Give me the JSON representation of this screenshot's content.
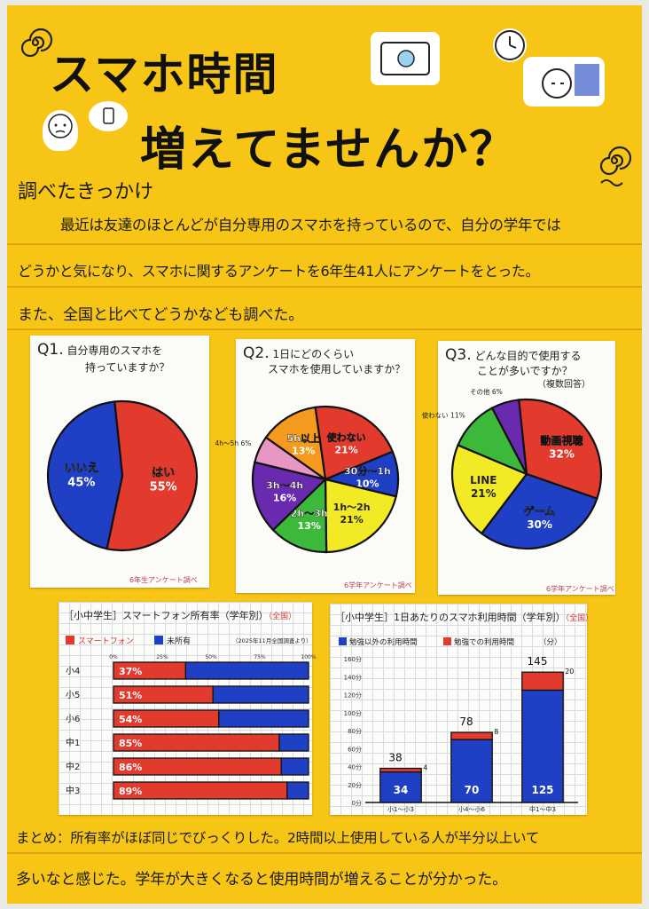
{
  "poster": {
    "title_line1": "スマホ時間",
    "title_line2": "増えてませんか？",
    "reason_heading": "調べたきっかけ",
    "reason_line1": "最近は友達のほとんどが自分専用のスマホを持っているので、自分の学年では",
    "reason_line2": "どうかと気になり、スマホに関するアンケートを6年生41人にアンケートをとった。",
    "reason_line3": "また、全国と比べてどうかなども調べた。",
    "summary_line1": "まとめ：所有率がほぼ同じでびっくりした。2時間以上使用している人が半分以上いて",
    "summary_line2": "多いなと感じた。学年が大きくなると使用時間が増えることが分かった。"
  },
  "chart_data": [
    {
      "type": "pie",
      "id": "q1",
      "question_num": "Q1.",
      "question_line1": "自分専用のスマホを",
      "question_line2": "持っていますか？",
      "credit": "6年生アンケート調べ",
      "slices": [
        {
          "label": "はい",
          "pct_label": "55%",
          "value": 55,
          "color": "#e23b2e"
        },
        {
          "label": "いいえ",
          "pct_label": "45%",
          "value": 45,
          "color": "#1f3fc4"
        }
      ]
    },
    {
      "type": "pie",
      "id": "q2",
      "question_num": "Q2.",
      "question_line1": "1日にどのくらい",
      "question_line2": "スマホを使用していますか？",
      "credit": "6学年アンケート調べ",
      "slices": [
        {
          "label": "使わない",
          "pct_label": "21%",
          "value": 21,
          "color": "#e23b2e"
        },
        {
          "label": "30分〜1h",
          "pct_label": "10%",
          "value": 10,
          "color": "#1f3fc4"
        },
        {
          "label": "1h〜2h",
          "pct_label": "21%",
          "value": 21,
          "color": "#f2ea24"
        },
        {
          "label": "2h〜3h",
          "pct_label": "13%",
          "value": 13,
          "color": "#3cb83a"
        },
        {
          "label": "3h〜4h",
          "pct_label": "16%",
          "value": 16,
          "color": "#6a2ab0"
        },
        {
          "label": "4h〜5h",
          "pct_label": "6%",
          "value": 6,
          "color": "#e896c2"
        },
        {
          "label": "5h以上",
          "pct_label": "13%",
          "value": 13,
          "color": "#f59a1c"
        }
      ]
    },
    {
      "type": "pie",
      "id": "q3",
      "question_num": "Q3.",
      "question_line1": "どんな目的で使用する",
      "question_line2": "ことが多いですか？",
      "question_line3": "（複数回答）",
      "credit": "6学年アンケート調べ",
      "slices": [
        {
          "label": "動画視聴",
          "pct_label": "32%",
          "value": 32,
          "color": "#e23b2e"
        },
        {
          "label": "ゲーム",
          "pct_label": "30%",
          "value": 30,
          "color": "#1f3fc4"
        },
        {
          "label": "LINE",
          "pct_label": "21%",
          "value": 21,
          "color": "#f2ea24"
        },
        {
          "label": "使わない",
          "pct_label": "11%",
          "value": 11,
          "color": "#3cb83a"
        },
        {
          "label": "その他",
          "pct_label": "6%",
          "value": 6,
          "color": "#6a2ab0"
        }
      ]
    },
    {
      "type": "bar",
      "id": "ownership",
      "orientation": "horizontal-stacked",
      "title": "［小中学生］スマートフォン所有率（学年別）",
      "title_badge": "（全国）",
      "note": "（2025年11月全国調査より）",
      "legend": [
        "スマートフォン",
        "未所有"
      ],
      "colors": [
        "#e23b2e",
        "#1f3fc4"
      ],
      "axis_ticks": [
        "0%",
        "25%",
        "50%",
        "75%",
        "100%"
      ],
      "categories": [
        "小4",
        "小5",
        "小6",
        "中1",
        "中2",
        "中3"
      ],
      "series": [
        {
          "name": "スマートフォン",
          "values": [
            37,
            51,
            54,
            85,
            86,
            89
          ]
        },
        {
          "name": "未所有",
          "values": [
            63,
            49,
            46,
            15,
            14,
            11
          ]
        }
      ],
      "value_labels": [
        "37%",
        "51%",
        "54%",
        "85%",
        "86%",
        "89%"
      ],
      "xlim": [
        0,
        100
      ]
    },
    {
      "type": "bar",
      "id": "usage",
      "orientation": "vertical-stacked",
      "title": "［小中学生］1日あたりのスマホ利用時間（学年別）",
      "title_badge": "（全国）",
      "legend": [
        "勉強以外の利用時間",
        "勉強での利用時間"
      ],
      "unit": "（分）",
      "colors": [
        "#1f3fc4",
        "#e23b2e"
      ],
      "y_ticks": [
        "0分",
        "20分",
        "40分",
        "60分",
        "80分",
        "100分",
        "120分",
        "140分",
        "160分"
      ],
      "categories": [
        "小1〜小3",
        "小4〜小6",
        "中1〜中3"
      ],
      "series": [
        {
          "name": "勉強以外の利用時間",
          "values": [
            34,
            70,
            125
          ]
        },
        {
          "name": "勉強での利用時間",
          "values": [
            4,
            8,
            20
          ]
        }
      ],
      "totals": [
        "38",
        "78",
        "145"
      ],
      "base_labels": [
        "34",
        "70",
        "125"
      ],
      "top_labels": [
        "4",
        "8",
        "20"
      ],
      "ylim": [
        0,
        160
      ]
    }
  ]
}
